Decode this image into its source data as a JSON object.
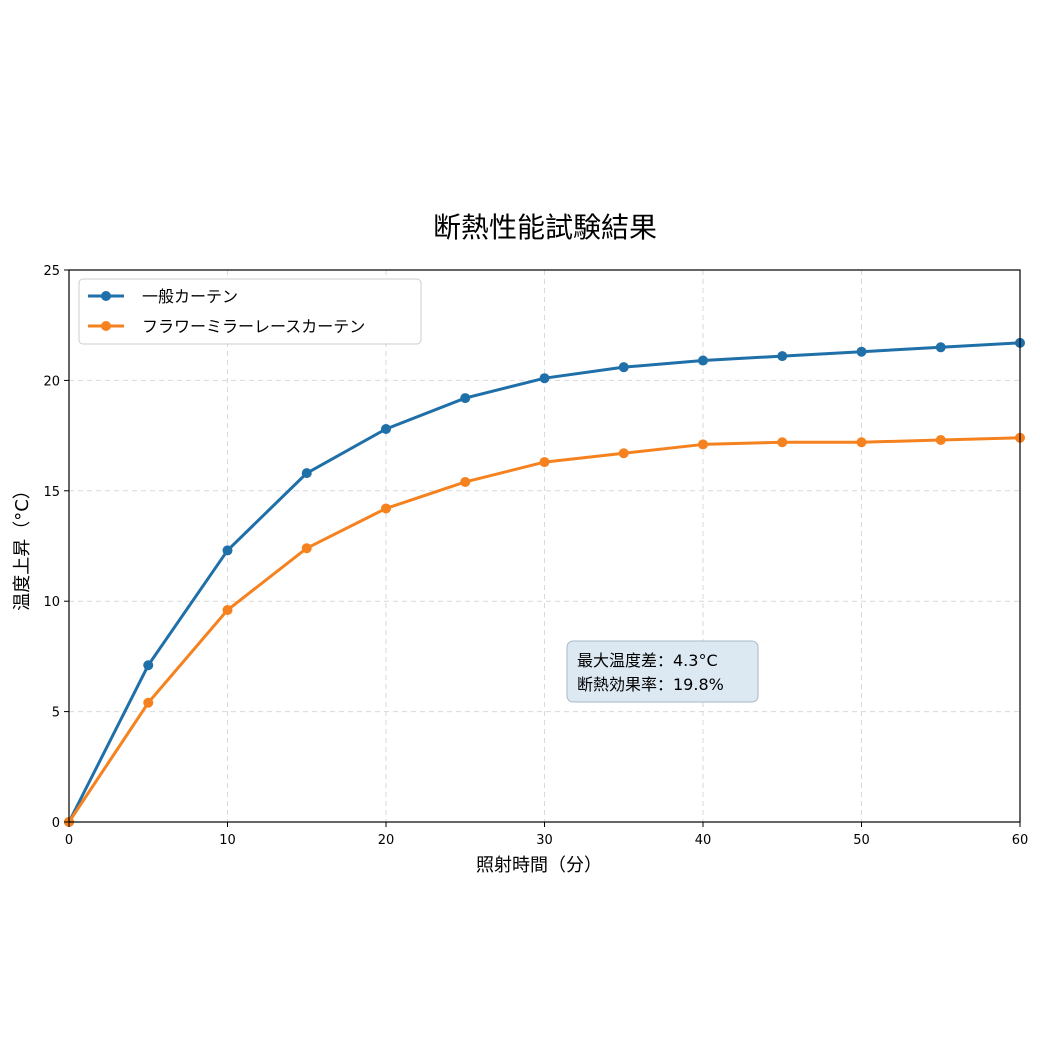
{
  "chart_data": {
    "type": "line",
    "title": "断熱性能試験結果",
    "xlabel": "照射時間（分）",
    "ylabel": "温度上昇（°C）",
    "xlim": [
      0,
      60
    ],
    "ylim": [
      0,
      25
    ],
    "x_ticks": [
      0,
      10,
      20,
      30,
      40,
      50,
      60
    ],
    "y_ticks": [
      0,
      5,
      10,
      15,
      20,
      25
    ],
    "grid": true,
    "legend_position": "top-left",
    "x": [
      0,
      5,
      10,
      15,
      20,
      25,
      30,
      35,
      40,
      45,
      50,
      55,
      60
    ],
    "series": [
      {
        "name": "一般カーテン",
        "color": "#1f6fa8",
        "values": [
          0,
          7.1,
          12.3,
          15.8,
          17.8,
          19.2,
          20.1,
          20.6,
          20.9,
          21.1,
          21.3,
          21.5,
          21.7
        ]
      },
      {
        "name": "フラワーミラーレースカーテン",
        "color": "#f5821f",
        "values": [
          0,
          5.4,
          9.6,
          12.4,
          14.2,
          15.4,
          16.3,
          16.7,
          17.1,
          17.2,
          17.2,
          17.3,
          17.4
        ]
      }
    ],
    "annotation": {
      "lines": [
        "最大温度差：4.3°C",
        "断熱効果率：19.8%"
      ],
      "box_color": "#dce8f2"
    }
  }
}
